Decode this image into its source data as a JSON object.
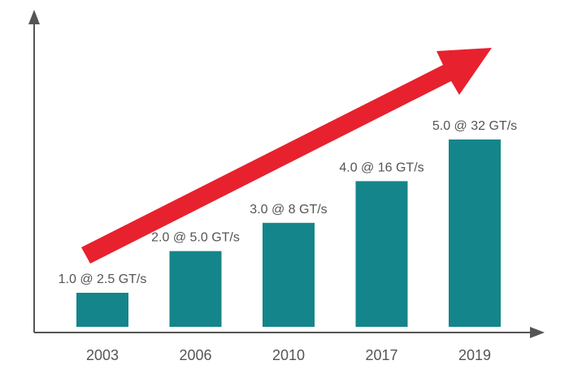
{
  "chart_data": {
    "type": "bar",
    "categories": [
      "2003",
      "2006",
      "2010",
      "2017",
      "2019"
    ],
    "values": [
      2.5,
      5.0,
      8,
      16,
      32
    ],
    "data_labels": [
      "1.0 @ 2.5 GT/s",
      "2.0 @ 5.0 GT/s",
      "3.0 @ 8 GT/s",
      "4.0 @ 16 GT/s",
      "5.0 @ 32 GT/s"
    ],
    "title": "",
    "xlabel": "",
    "ylabel": "",
    "ylim_note": "bars drawn on a compressed (log-like) scale; y axis unlabeled",
    "grid": false,
    "legend": "none",
    "colors": {
      "bar": "#14858a",
      "arrow": "#e8212e",
      "axis": "#555555",
      "text": "#555555"
    }
  }
}
